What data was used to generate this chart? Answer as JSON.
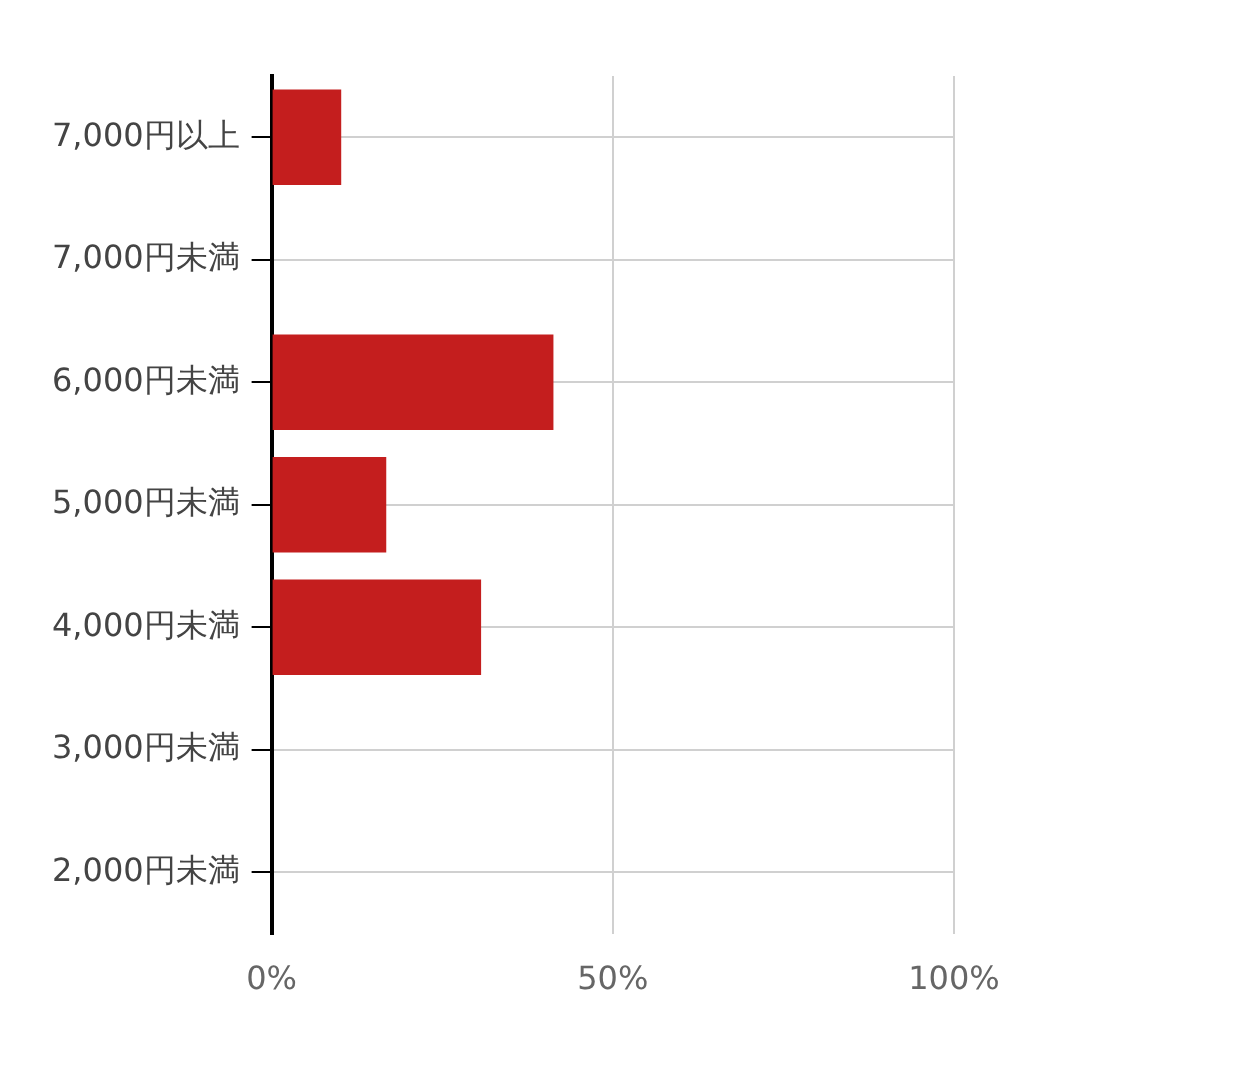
{
  "chart_data": {
    "type": "bar",
    "orientation": "horizontal",
    "categories": [
      "7,000円以上",
      "7,000円未満",
      "6,000円未満",
      "5,000円未満",
      "4,000円未満",
      "3,000円未満",
      "2,000円未満"
    ],
    "values": [
      10.2,
      0,
      41.3,
      16.8,
      30.7,
      0,
      0
    ],
    "color": "#c41e1e",
    "xlim": [
      0,
      100
    ],
    "xticks": [
      {
        "value": 0,
        "label": "0%"
      },
      {
        "value": 50,
        "label": "50%"
      },
      {
        "value": 100,
        "label": "100%"
      }
    ],
    "grid": true,
    "legend": false
  }
}
